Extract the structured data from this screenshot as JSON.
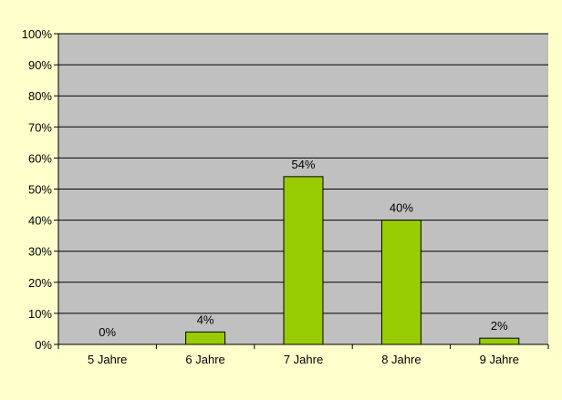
{
  "chart_data": {
    "type": "bar",
    "categories": [
      "5 Jahre",
      "6 Jahre",
      "7 Jahre",
      "8 Jahre",
      "9 Jahre"
    ],
    "values": [
      0,
      4,
      54,
      40,
      2
    ],
    "data_labels": [
      "0%",
      "4%",
      "54%",
      "40%",
      "2%"
    ],
    "title": "",
    "xlabel": "",
    "ylabel": "",
    "ylim": [
      0,
      100
    ],
    "yticks": [
      0,
      10,
      20,
      30,
      40,
      50,
      60,
      70,
      80,
      90,
      100
    ],
    "ytick_labels": [
      "0%",
      "10%",
      "20%",
      "30%",
      "40%",
      "50%",
      "60%",
      "70%",
      "80%",
      "90%",
      "100%"
    ],
    "grid": true,
    "legend": "none"
  },
  "colors": {
    "page_background": "#ffffcc",
    "plot_background": "#c0c0c0",
    "bar_fill": "#99cc00",
    "bar_stroke": "#000000",
    "gridline": "#000000"
  }
}
